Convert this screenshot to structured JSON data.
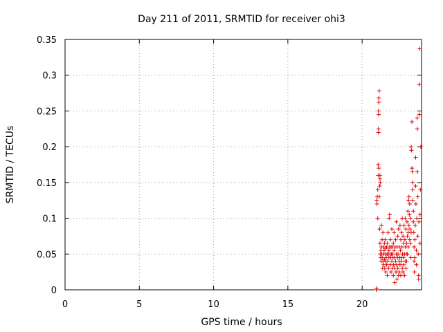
{
  "chart_data": {
    "type": "scatter",
    "title": "Day 211 of 2011, SRMTID for receiver ohi3",
    "xlabel": "GPS time / hours",
    "ylabel": "SRMTID / TECUs",
    "xlim": [
      0,
      24
    ],
    "ylim": [
      0,
      0.35
    ],
    "xticks": [
      "0",
      "5",
      "10",
      "15",
      "20"
    ],
    "yticks": [
      "0",
      "0.05",
      "0.1",
      "0.15",
      "0.2",
      "0.25",
      "0.3",
      "0.35"
    ],
    "xtick_values": [
      0,
      5,
      10,
      15,
      20
    ],
    "ytick_values": [
      0,
      0.05,
      0.1,
      0.15,
      0.2,
      0.25,
      0.3,
      0.35
    ],
    "grid": true,
    "marker": "+",
    "series_color": "#e00000",
    "points": [
      [
        20.95,
        0.0
      ],
      [
        20.97,
        0.002
      ],
      [
        20.98,
        0.125
      ],
      [
        21.0,
        0.12
      ],
      [
        21.02,
        0.13
      ],
      [
        21.05,
        0.1
      ],
      [
        21.05,
        0.14
      ],
      [
        21.08,
        0.175
      ],
      [
        21.08,
        0.16
      ],
      [
        21.1,
        0.22
      ],
      [
        21.1,
        0.225
      ],
      [
        21.1,
        0.25
      ],
      [
        21.12,
        0.245
      ],
      [
        21.12,
        0.262
      ],
      [
        21.12,
        0.268
      ],
      [
        21.15,
        0.278
      ],
      [
        21.12,
        0.17
      ],
      [
        21.15,
        0.13
      ],
      [
        21.18,
        0.145
      ],
      [
        21.2,
        0.16
      ],
      [
        21.2,
        0.155
      ],
      [
        21.22,
        0.15
      ],
      [
        21.18,
        0.085
      ],
      [
        21.2,
        0.065
      ],
      [
        21.22,
        0.05
      ],
      [
        21.25,
        0.055
      ],
      [
        21.25,
        0.045
      ],
      [
        21.28,
        0.04
      ],
      [
        21.3,
        0.09
      ],
      [
        21.3,
        0.06
      ],
      [
        21.32,
        0.05
      ],
      [
        21.35,
        0.07
      ],
      [
        21.35,
        0.045
      ],
      [
        21.38,
        0.03
      ],
      [
        21.4,
        0.04
      ],
      [
        21.4,
        0.08
      ],
      [
        21.42,
        0.06
      ],
      [
        21.45,
        0.05
      ],
      [
        21.45,
        0.035
      ],
      [
        21.48,
        0.055
      ],
      [
        21.5,
        0.065
      ],
      [
        21.5,
        0.042
      ],
      [
        21.52,
        0.03
      ],
      [
        21.55,
        0.05
      ],
      [
        21.55,
        0.07
      ],
      [
        21.58,
        0.04
      ],
      [
        21.6,
        0.058
      ],
      [
        21.6,
        0.025
      ],
      [
        21.62,
        0.045
      ],
      [
        21.65,
        0.06
      ],
      [
        21.65,
        0.035
      ],
      [
        21.68,
        0.05
      ],
      [
        21.7,
        0.02
      ],
      [
        21.7,
        0.065
      ],
      [
        21.72,
        0.04
      ],
      [
        21.75,
        0.05
      ],
      [
        21.75,
        0.08
      ],
      [
        21.78,
        0.03
      ],
      [
        21.8,
        0.055
      ],
      [
        21.8,
        0.045
      ],
      [
        21.82,
        0.1
      ],
      [
        21.85,
        0.105
      ],
      [
        21.85,
        0.06
      ],
      [
        21.88,
        0.05
      ],
      [
        21.9,
        0.035
      ],
      [
        21.9,
        0.07
      ],
      [
        21.92,
        0.045
      ],
      [
        21.95,
        0.025
      ],
      [
        21.95,
        0.06
      ],
      [
        21.98,
        0.05
      ],
      [
        22.0,
        0.04
      ],
      [
        22.0,
        0.085
      ],
      [
        22.02,
        0.06
      ],
      [
        22.05,
        0.03
      ],
      [
        22.05,
        0.05
      ],
      [
        22.08,
        0.045
      ],
      [
        22.1,
        0.065
      ],
      [
        22.1,
        0.02
      ],
      [
        22.12,
        0.035
      ],
      [
        22.15,
        0.055
      ],
      [
        22.15,
        0.08
      ],
      [
        22.18,
        0.03
      ],
      [
        22.2,
        0.045
      ],
      [
        22.2,
        0.01
      ],
      [
        22.22,
        0.06
      ],
      [
        22.25,
        0.04
      ],
      [
        22.25,
        0.07
      ],
      [
        22.28,
        0.025
      ],
      [
        22.3,
        0.05
      ],
      [
        22.3,
        0.095
      ],
      [
        22.32,
        0.035
      ],
      [
        22.35,
        0.06
      ],
      [
        22.35,
        0.015
      ],
      [
        22.38,
        0.045
      ],
      [
        22.4,
        0.03
      ],
      [
        22.4,
        0.075
      ],
      [
        22.42,
        0.05
      ],
      [
        22.45,
        0.02
      ],
      [
        22.45,
        0.085
      ],
      [
        22.48,
        0.04
      ],
      [
        22.5,
        0.06
      ],
      [
        22.5,
        0.025
      ],
      [
        22.52,
        0.045
      ],
      [
        22.55,
        0.09
      ],
      [
        22.55,
        0.035
      ],
      [
        22.58,
        0.055
      ],
      [
        22.6,
        0.07
      ],
      [
        22.6,
        0.02
      ],
      [
        22.62,
        0.045
      ],
      [
        22.65,
        0.08
      ],
      [
        22.65,
        0.04
      ],
      [
        22.68,
        0.06
      ],
      [
        22.7,
        0.1
      ],
      [
        22.7,
        0.03
      ],
      [
        22.72,
        0.05
      ],
      [
        22.75,
        0.075
      ],
      [
        22.75,
        0.025
      ],
      [
        22.78,
        0.045
      ],
      [
        22.8,
        0.065
      ],
      [
        22.8,
        0.035
      ],
      [
        22.82,
        0.09
      ],
      [
        22.85,
        0.05
      ],
      [
        22.85,
        0.02
      ],
      [
        22.88,
        0.07
      ],
      [
        22.9,
        0.04
      ],
      [
        22.9,
        0.1
      ],
      [
        22.92,
        0.06
      ],
      [
        22.95,
        0.03
      ],
      [
        22.95,
        0.085
      ],
      [
        22.98,
        0.05
      ],
      [
        23.0,
        0.065
      ],
      [
        23.0,
        0.04
      ],
      [
        23.02,
        0.095
      ],
      [
        23.05,
        0.075
      ],
      [
        23.05,
        0.05
      ],
      [
        23.08,
        0.11
      ],
      [
        23.1,
        0.08
      ],
      [
        23.1,
        0.06
      ],
      [
        23.12,
        0.125
      ],
      [
        23.15,
        0.13
      ],
      [
        23.15,
        0.09
      ],
      [
        23.18,
        0.105
      ],
      [
        23.2,
        0.07
      ],
      [
        23.2,
        0.12
      ],
      [
        23.22,
        0.085
      ],
      [
        23.25,
        0.1
      ],
      [
        23.25,
        0.065
      ],
      [
        23.28,
        0.045
      ],
      [
        23.3,
        0.08
      ],
      [
        23.3,
        0.2
      ],
      [
        23.32,
        0.195
      ],
      [
        23.35,
        0.235
      ],
      [
        23.35,
        0.17
      ],
      [
        23.38,
        0.165
      ],
      [
        23.4,
        0.15
      ],
      [
        23.4,
        0.14
      ],
      [
        23.42,
        0.125
      ],
      [
        23.45,
        0.11
      ],
      [
        23.45,
        0.095
      ],
      [
        23.48,
        0.08
      ],
      [
        23.5,
        0.06
      ],
      [
        23.5,
        0.04
      ],
      [
        23.52,
        0.025
      ],
      [
        23.55,
        0.045
      ],
      [
        23.55,
        0.07
      ],
      [
        23.58,
        0.09
      ],
      [
        23.6,
        0.185
      ],
      [
        23.6,
        0.145
      ],
      [
        23.62,
        0.12
      ],
      [
        23.65,
        0.035
      ],
      [
        23.65,
        0.055
      ],
      [
        23.68,
        0.1
      ],
      [
        23.7,
        0.24
      ],
      [
        23.72,
        0.225
      ],
      [
        23.72,
        0.165
      ],
      [
        23.75,
        0.13
      ],
      [
        23.75,
        0.075
      ],
      [
        23.78,
        0.05
      ],
      [
        23.8,
        0.02
      ],
      [
        23.8,
        0.015
      ],
      [
        23.82,
        0.095
      ],
      [
        23.85,
        0.245
      ],
      [
        23.85,
        0.287
      ],
      [
        23.88,
        0.337
      ],
      [
        23.9,
        0.065
      ],
      [
        23.9,
        0.105
      ],
      [
        23.92,
        0.14
      ],
      [
        23.95,
        0.2
      ]
    ]
  }
}
